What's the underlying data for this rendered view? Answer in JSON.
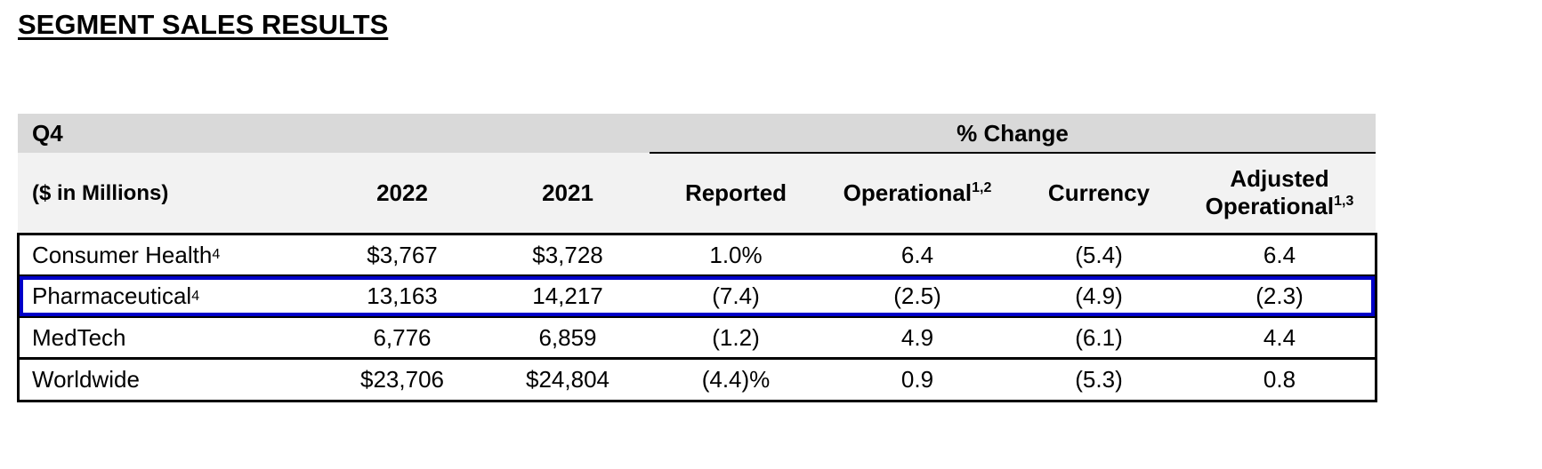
{
  "title": "SEGMENT SALES RESULTS",
  "table": {
    "period": "Q4",
    "group_header": "% Change",
    "columns": [
      {
        "label": "($ in Millions)"
      },
      {
        "label": "2022"
      },
      {
        "label": "2021"
      },
      {
        "label": "Reported"
      },
      {
        "label": "Operational",
        "note": "1,2"
      },
      {
        "label": "Currency"
      },
      {
        "label": "Adjusted Operational",
        "note": "1,3"
      }
    ],
    "rows": [
      {
        "label": "Consumer Health",
        "note": "4",
        "cells": [
          "$3,767",
          "$3,728",
          "1.0%",
          "6.4",
          "(5.4)",
          "6.4"
        ]
      },
      {
        "label": "Pharmaceutical",
        "note": "4",
        "cells": [
          "13,163",
          "14,217",
          "(7.4)",
          "(2.5)",
          "(4.9)",
          "(2.3)"
        ]
      },
      {
        "label": "MedTech",
        "cells": [
          "6,776",
          "6,859",
          "(1.2)",
          "4.9",
          "(6.1)",
          "4.4"
        ]
      },
      {
        "label": "Worldwide",
        "cells": [
          "$23,706",
          "$24,804",
          "(4.4)%",
          "0.9",
          "(5.3)",
          "0.8"
        ]
      }
    ]
  }
}
